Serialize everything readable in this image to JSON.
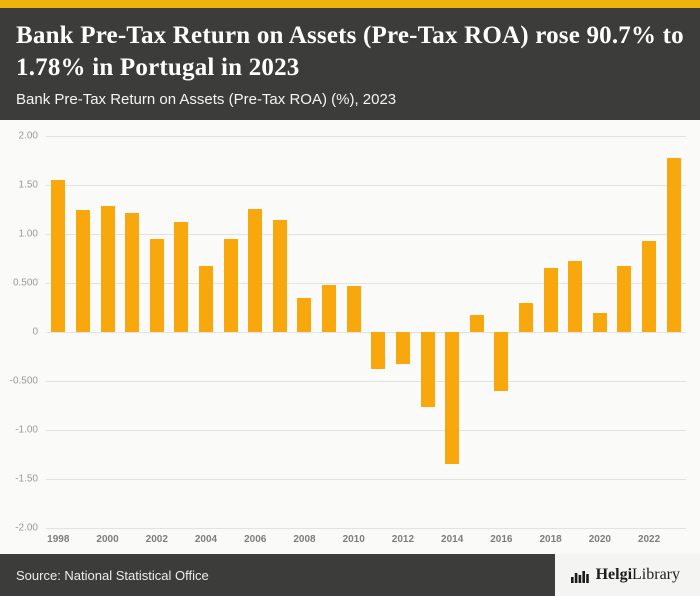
{
  "header": {
    "title": "Bank Pre-Tax Return on Assets (Pre-Tax ROA) rose 90.7% to 1.78% in Portugal in 2023",
    "subtitle": "Bank Pre-Tax Return on Assets (Pre-Tax ROA) (%), 2023"
  },
  "footer": {
    "source": "Source: National Statistical Office",
    "logo_helgi": "Helgi",
    "logo_library": "Library"
  },
  "colors": {
    "accent_strip": "#efb30e",
    "bar": "#f8a80c",
    "header_bg": "#3c3c3a",
    "gridline": "#e2e2e0"
  },
  "chart_data": {
    "type": "bar",
    "title": "Bank Pre-Tax Return on Assets (Pre-Tax ROA) (%), 2023",
    "xlabel": "",
    "ylabel": "",
    "x": [
      1998,
      1999,
      2000,
      2001,
      2002,
      2003,
      2004,
      2005,
      2006,
      2007,
      2008,
      2009,
      2010,
      2011,
      2012,
      2013,
      2014,
      2015,
      2016,
      2017,
      2018,
      2019,
      2020,
      2021,
      2022,
      2023
    ],
    "values": [
      1.55,
      1.25,
      1.29,
      1.21,
      0.95,
      1.12,
      0.67,
      0.95,
      1.26,
      1.14,
      0.35,
      0.48,
      0.47,
      -0.38,
      -0.33,
      -0.77,
      -1.35,
      0.17,
      -0.6,
      0.3,
      0.65,
      0.72,
      0.19,
      0.67,
      0.93,
      1.78
    ],
    "ylim": [
      -2,
      2
    ],
    "yticks": [
      2,
      1.5,
      1,
      0.5,
      0,
      -0.5,
      -1,
      -1.5,
      -2
    ],
    "ytick_labels": [
      "2.00",
      "1.50",
      "1.00",
      "0.500",
      "0",
      "-0.500",
      "-1.00",
      "-1.50",
      "-2.00"
    ],
    "xtick_labels": [
      "1998",
      "2000",
      "2002",
      "2004",
      "2006",
      "2008",
      "2010",
      "2012",
      "2014",
      "2016",
      "2018",
      "2020",
      "2022"
    ],
    "grid": true,
    "legend": false,
    "bar_color": "#f8a80c"
  }
}
